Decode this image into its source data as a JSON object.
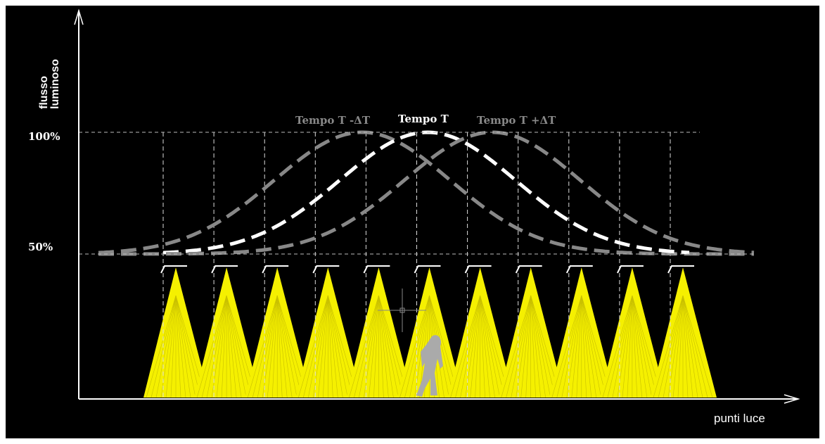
{
  "axis": {
    "y_label": [
      "flusso",
      "luminoso"
    ],
    "x_label": "punti luce"
  },
  "levels": [
    "100%",
    "50%"
  ],
  "curves": [
    "Tempo T -ΔT",
    "Tempo T",
    "Tempo T +ΔT"
  ]
}
